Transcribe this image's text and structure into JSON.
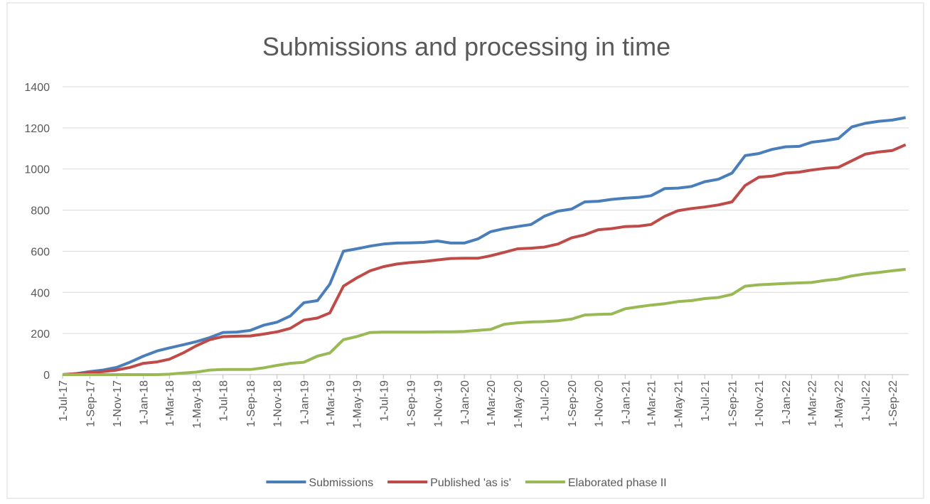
{
  "chart_data": {
    "type": "line",
    "title": "Submissions and processing in time",
    "x": [
      "2017-07-01",
      "2017-08-01",
      "2017-09-01",
      "2017-10-01",
      "2017-11-01",
      "2017-12-01",
      "2018-01-01",
      "2018-02-01",
      "2018-03-01",
      "2018-04-01",
      "2018-05-01",
      "2018-06-01",
      "2018-07-01",
      "2018-08-01",
      "2018-09-01",
      "2018-10-01",
      "2018-11-01",
      "2018-12-01",
      "2019-01-01",
      "2019-02-01",
      "2019-03-01",
      "2019-04-01",
      "2019-05-01",
      "2019-06-01",
      "2019-07-01",
      "2019-08-01",
      "2019-09-01",
      "2019-10-01",
      "2019-11-01",
      "2019-12-01",
      "2020-01-01",
      "2020-02-01",
      "2020-03-01",
      "2020-04-01",
      "2020-05-01",
      "2020-06-01",
      "2020-07-01",
      "2020-08-01",
      "2020-09-01",
      "2020-10-01",
      "2020-11-01",
      "2020-12-01",
      "2021-01-01",
      "2021-02-01",
      "2021-03-01",
      "2021-04-01",
      "2021-05-01",
      "2021-06-01",
      "2021-07-01",
      "2021-08-01",
      "2021-09-01",
      "2021-10-01",
      "2021-11-01",
      "2021-12-01",
      "2022-01-01",
      "2022-02-01",
      "2022-03-01",
      "2022-04-01",
      "2022-05-01",
      "2022-06-01",
      "2022-07-01",
      "2022-08-01",
      "2022-09-01",
      "2022-10-01"
    ],
    "series": [
      {
        "name": "Submissions",
        "color": "#4a7ebb",
        "values": [
          0,
          5,
          15,
          22,
          35,
          60,
          90,
          115,
          130,
          145,
          160,
          180,
          205,
          207,
          215,
          240,
          255,
          285,
          350,
          360,
          440,
          600,
          612,
          625,
          635,
          640,
          641,
          643,
          650,
          640,
          640,
          660,
          695,
          710,
          720,
          730,
          770,
          795,
          805,
          840,
          843,
          852,
          858,
          862,
          870,
          905,
          907,
          915,
          938,
          950,
          980,
          1065,
          1075,
          1095,
          1108,
          1110,
          1130,
          1138,
          1148,
          1205,
          1222,
          1232,
          1238,
          1250
        ]
      },
      {
        "name": "Published 'as is'",
        "color": "#be4b48",
        "values": [
          0,
          5,
          10,
          15,
          22,
          35,
          55,
          62,
          75,
          105,
          140,
          170,
          185,
          187,
          188,
          197,
          208,
          225,
          265,
          275,
          300,
          430,
          470,
          505,
          525,
          538,
          545,
          550,
          558,
          565,
          566,
          566,
          578,
          595,
          612,
          615,
          620,
          635,
          665,
          680,
          705,
          710,
          720,
          722,
          730,
          770,
          797,
          808,
          815,
          825,
          840,
          920,
          960,
          965,
          980,
          985,
          995,
          1003,
          1008,
          1040,
          1072,
          1083,
          1090,
          1118
        ]
      },
      {
        "name": "Elaborated phase II",
        "color": "#98b954",
        "values": [
          0,
          0,
          0,
          0,
          0,
          0,
          0,
          0,
          2,
          8,
          12,
          22,
          25,
          25,
          25,
          33,
          45,
          55,
          60,
          90,
          105,
          170,
          185,
          205,
          207,
          207,
          207,
          207,
          208,
          208,
          210,
          215,
          220,
          245,
          252,
          256,
          258,
          262,
          270,
          290,
          293,
          295,
          320,
          330,
          338,
          345,
          355,
          360,
          370,
          375,
          390,
          430,
          437,
          440,
          443,
          446,
          448,
          458,
          465,
          480,
          490,
          497,
          505,
          512
        ]
      }
    ],
    "xlim": [
      "2017-07-01",
      "2022-10-08"
    ],
    "xticks": [
      {
        "value": "2017-07-01",
        "label": "1-Jul-17"
      },
      {
        "value": "2017-09-01",
        "label": "1-Sep-17"
      },
      {
        "value": "2017-11-01",
        "label": "1-Nov-17"
      },
      {
        "value": "2018-01-01",
        "label": "1-Jan-18"
      },
      {
        "value": "2018-03-01",
        "label": "1-Mar-18"
      },
      {
        "value": "2018-05-01",
        "label": "1-May-18"
      },
      {
        "value": "2018-07-01",
        "label": "1-Jul-18"
      },
      {
        "value": "2018-09-01",
        "label": "1-Sep-18"
      },
      {
        "value": "2018-11-01",
        "label": "1-Nov-18"
      },
      {
        "value": "2019-01-01",
        "label": "1-Jan-19"
      },
      {
        "value": "2019-03-01",
        "label": "1-Mar-19"
      },
      {
        "value": "2019-05-01",
        "label": "1-May-19"
      },
      {
        "value": "2019-07-01",
        "label": "1-Jul-19"
      },
      {
        "value": "2019-09-01",
        "label": "1-Sep-19"
      },
      {
        "value": "2019-11-01",
        "label": "1-Nov-19"
      },
      {
        "value": "2020-01-01",
        "label": "1-Jan-20"
      },
      {
        "value": "2020-03-01",
        "label": "1-Mar-20"
      },
      {
        "value": "2020-05-01",
        "label": "1-May-20"
      },
      {
        "value": "2020-07-01",
        "label": "1-Jul-20"
      },
      {
        "value": "2020-09-01",
        "label": "1-Sep-20"
      },
      {
        "value": "2020-11-01",
        "label": "1-Nov-20"
      },
      {
        "value": "2021-01-01",
        "label": "1-Jan-21"
      },
      {
        "value": "2021-03-01",
        "label": "1-Mar-21"
      },
      {
        "value": "2021-05-01",
        "label": "1-May-21"
      },
      {
        "value": "2021-07-01",
        "label": "1-Jul-21"
      },
      {
        "value": "2021-09-01",
        "label": "1-Sep-21"
      },
      {
        "value": "2021-11-01",
        "label": "1-Nov-21"
      },
      {
        "value": "2022-01-01",
        "label": "1-Jan-22"
      },
      {
        "value": "2022-03-01",
        "label": "1-Mar-22"
      },
      {
        "value": "2022-05-01",
        "label": "1-May-22"
      },
      {
        "value": "2022-07-01",
        "label": "1-Jul-22"
      },
      {
        "value": "2022-09-01",
        "label": "1-Sep-22"
      }
    ],
    "ylim": [
      0,
      1400
    ],
    "yticks": [
      0,
      200,
      400,
      600,
      800,
      1000,
      1200,
      1400
    ],
    "grid": true,
    "legend": "bottom"
  }
}
